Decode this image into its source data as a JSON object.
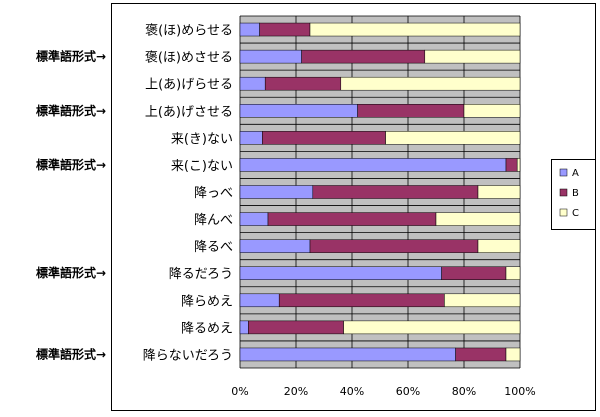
{
  "chart_data": {
    "type": "bar",
    "orientation": "horizontal",
    "stacked": "percent",
    "categories": [
      "褒(ほ)めらせる",
      "褒(ほ)めさせる",
      "上(あ)げらせる",
      "上(あ)げさせる",
      "来(き)ない",
      "来(こ)ない",
      "降っべ",
      "降んべ",
      "降るべ",
      "降るだろう",
      "降らめえ",
      "降るめえ",
      "降らないだろう"
    ],
    "series": [
      {
        "name": "A",
        "color": "#9999ff",
        "values": [
          7,
          22,
          9,
          42,
          8,
          95,
          26,
          10,
          25,
          72,
          14,
          3,
          77
        ]
      },
      {
        "name": "B",
        "color": "#993366",
        "values": [
          18,
          44,
          27,
          38,
          44,
          4,
          59,
          60,
          60,
          23,
          59,
          34,
          18
        ]
      },
      {
        "name": "C",
        "color": "#ffffcc",
        "values": [
          75,
          34,
          64,
          20,
          48,
          1,
          15,
          30,
          15,
          5,
          27,
          63,
          5
        ]
      }
    ],
    "x_ticks": [
      "0%",
      "20%",
      "40%",
      "60%",
      "80%",
      "100%"
    ],
    "xlim": [
      0,
      100
    ],
    "grid": true,
    "legend_position": "right",
    "annotations": [
      {
        "text": "標準語形式→",
        "category": "褒(ほ)めさせる"
      },
      {
        "text": "標準語形式→",
        "category": "上(あ)げさせる"
      },
      {
        "text": "標準語形式→",
        "category": "来(こ)ない"
      },
      {
        "text": "標準語形式→",
        "category": "降るだろう"
      },
      {
        "text": "標準語形式→",
        "category": "降らないだろう"
      }
    ]
  }
}
